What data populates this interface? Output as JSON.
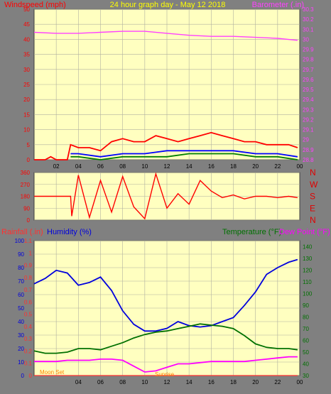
{
  "header": {
    "left_title": "Windspeed (mph)",
    "center_title": "24 hour graph day - May 12 2018",
    "right_title": "Barometer (.in)"
  },
  "bottom_header": {
    "rain_label": "Rainfall (.in)",
    "humidity_label": "Humidity (%)",
    "temperature_label": "Temperature (°F)",
    "dewpoint_label": "Dew Point (°F)"
  },
  "bottom_overlay": {
    "moon_label": "Moon Set",
    "sun_label": "Sunrise"
  },
  "colors": {
    "background": "#808080",
    "plot_bg": "#ffffc0",
    "grid": "#b0b0a0",
    "wind_gust": "#ff0000",
    "wind_avg": "#0000ff",
    "wind_low": "#008000",
    "barometer": "#ff40ff",
    "title_yellow": "#ffff00",
    "humidity": "#0000dd",
    "temperature": "#007000",
    "dewpoint": "#ff00ff",
    "rain": "#ff3030"
  },
  "x_ticks": [
    "02",
    "04",
    "06",
    "08",
    "10",
    "12",
    "14",
    "16",
    "18",
    "20",
    "22",
    "00"
  ],
  "bottom_x_ticks": [
    "04",
    "06",
    "08",
    "10",
    "12",
    "14",
    "16",
    "18",
    "20",
    "22",
    "00"
  ],
  "chart_data": [
    {
      "type": "line",
      "title": "24 hour graph day - May 12 2018",
      "ylabel": "Windspeed (mph)",
      "ylim": [
        0,
        50
      ],
      "yticks": [
        0,
        5,
        10,
        15,
        20,
        25,
        30,
        35,
        40,
        45,
        50
      ],
      "y2label": "Barometer (.in)",
      "y2lim": [
        28.8,
        30.3
      ],
      "y2ticks": [
        "28.8",
        "28.9",
        "29",
        "29.1",
        "29.2",
        "29.3",
        "29.4",
        "29.5",
        "29.6",
        "29.7",
        "29.8",
        "29.9",
        "30",
        "30.1",
        "30.2",
        "30.3"
      ],
      "xlim": [
        0,
        24
      ],
      "grid": true,
      "series": [
        {
          "name": "Windspeed",
          "color": "#ff0000",
          "x": [
            0,
            1,
            1.5,
            2,
            3,
            3.3,
            4,
            5,
            6,
            7,
            8,
            9,
            10,
            11,
            12,
            13,
            14,
            15,
            16,
            17,
            18,
            19,
            20,
            21,
            22,
            23,
            23.8
          ],
          "y": [
            0,
            0,
            1,
            0,
            0,
            5,
            4,
            4,
            3,
            6,
            7,
            6,
            6,
            8,
            7,
            6,
            7,
            8,
            9,
            8,
            7,
            6,
            6,
            5,
            5,
            5,
            4
          ]
        },
        {
          "name": "Average",
          "color": "#0000ff",
          "x": [
            3.3,
            4,
            6,
            8,
            10,
            12,
            14,
            16,
            18,
            20,
            22,
            23.8
          ],
          "y": [
            2,
            2,
            1,
            2,
            2,
            3,
            3,
            3,
            3,
            2,
            2,
            1
          ]
        },
        {
          "name": "Low",
          "color": "#008000",
          "x": [
            3.3,
            4,
            6,
            8,
            10,
            12,
            14,
            16,
            18,
            20,
            22,
            23.8
          ],
          "y": [
            1,
            1,
            0,
            1,
            1,
            1,
            2,
            2,
            2,
            1,
            1,
            0
          ]
        },
        {
          "name": "Barometer",
          "color": "#ff40ff",
          "axis": "y2",
          "x": [
            0,
            2,
            4,
            6,
            8,
            10,
            12,
            14,
            16,
            18,
            20,
            22,
            23.8
          ],
          "y": [
            30.07,
            30.06,
            30.06,
            30.07,
            30.08,
            30.08,
            30.06,
            30.04,
            30.03,
            30.03,
            30.02,
            30.01,
            29.99
          ]
        }
      ]
    },
    {
      "type": "line",
      "ylabel": "Wind Direction",
      "ylim": [
        0,
        360
      ],
      "yticks": [
        0,
        90,
        180,
        270,
        360
      ],
      "direction_labels": [
        "N",
        "W",
        "S",
        "E",
        "N"
      ],
      "xlim": [
        0,
        24
      ],
      "grid": true,
      "series": [
        {
          "name": "Direction",
          "color": "#ff0000",
          "x": [
            0,
            3.3,
            3.4,
            4,
            5,
            6,
            7,
            8,
            9,
            10,
            11,
            12,
            13,
            14,
            15,
            16,
            17,
            18,
            19,
            20,
            21,
            22,
            23,
            23.8
          ],
          "y": [
            180,
            180,
            30,
            340,
            20,
            300,
            60,
            330,
            100,
            10,
            350,
            90,
            200,
            120,
            300,
            220,
            170,
            190,
            160,
            180,
            180,
            170,
            180,
            170
          ]
        }
      ]
    },
    {
      "type": "line",
      "ylabel": "Humidity (%)",
      "ylim": [
        0,
        100
      ],
      "yticks": [
        0,
        10,
        20,
        30,
        40,
        50,
        60,
        70,
        80,
        90,
        100
      ],
      "rain_axis": {
        "label": "Rainfall (.in)",
        "ylim": [
          0,
          1.1
        ],
        "ticks": [
          "0",
          "0.1",
          "0.2",
          "0.3",
          "0.4",
          "0.5",
          "0.6",
          "0.7",
          "0.8",
          "0.9",
          "1",
          "1.1"
        ]
      },
      "y2label": "Temperature (°F)",
      "y2lim": [
        30,
        145
      ],
      "y2ticks": [
        "30",
        "40",
        "50",
        "60",
        "70",
        "80",
        "90",
        "100",
        "110",
        "120",
        "130",
        "140"
      ],
      "xlim": [
        0,
        24
      ],
      "grid": true,
      "series": [
        {
          "name": "Humidity",
          "color": "#0000dd",
          "x": [
            0,
            1,
            2,
            3,
            4,
            5,
            6,
            7,
            8,
            9,
            10,
            11,
            12,
            13,
            14,
            15,
            16,
            17,
            18,
            19,
            20,
            21,
            22,
            23,
            23.8
          ],
          "y": [
            68,
            72,
            78,
            76,
            67,
            69,
            73,
            63,
            48,
            38,
            33,
            33,
            35,
            40,
            37,
            36,
            37,
            40,
            43,
            52,
            62,
            75,
            80,
            84,
            86
          ]
        },
        {
          "name": "Temperature",
          "color": "#007000",
          "axis": "y2",
          "x": [
            0,
            1,
            2,
            3,
            4,
            5,
            6,
            7,
            8,
            9,
            10,
            11,
            12,
            13,
            14,
            15,
            16,
            17,
            18,
            19,
            20,
            21,
            22,
            23,
            23.8
          ],
          "y": [
            51,
            49,
            49,
            50,
            53,
            53,
            52,
            55,
            58,
            62,
            65,
            67,
            68,
            70,
            72,
            74,
            73,
            72,
            70,
            64,
            57,
            54,
            53,
            53,
            52
          ]
        },
        {
          "name": "Dew Point",
          "color": "#ff00ff",
          "axis": "y2",
          "x": [
            0,
            1,
            2,
            3,
            4,
            5,
            6,
            7,
            8,
            9,
            10,
            11,
            12,
            13,
            14,
            15,
            16,
            17,
            18,
            19,
            20,
            21,
            22,
            23,
            23.8
          ],
          "y": [
            42,
            42,
            42,
            43,
            43,
            43,
            44,
            44,
            43,
            38,
            33,
            34,
            37,
            40,
            40,
            41,
            42,
            42,
            42,
            42,
            43,
            44,
            45,
            46,
            46
          ]
        },
        {
          "name": "Rainfall",
          "color": "#ff3030",
          "axis": "rain",
          "x": [
            0,
            23.8
          ],
          "y": [
            0,
            0
          ]
        }
      ]
    }
  ]
}
